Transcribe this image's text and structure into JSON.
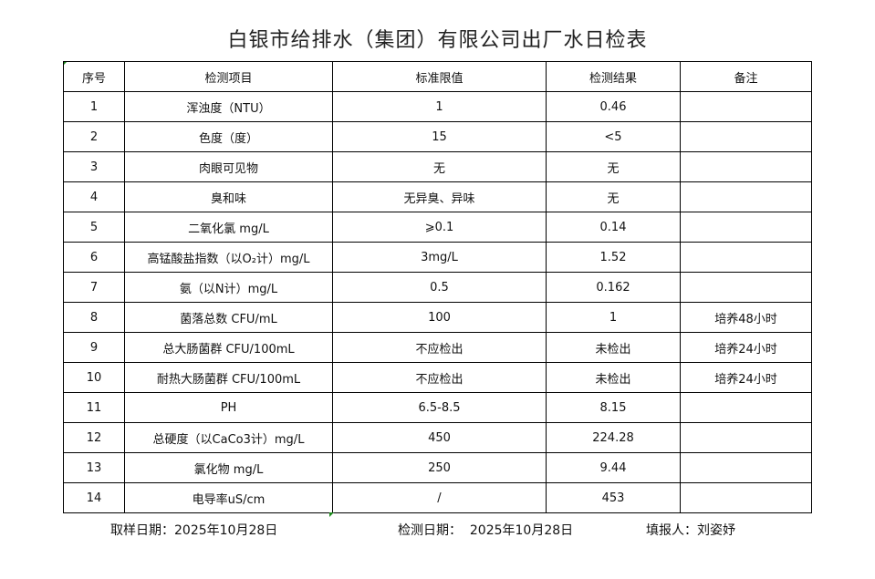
{
  "title": "白银市给排水（集团）有限公司出厂水日检表",
  "headers": [
    "序号",
    "检测项目",
    "标准限值",
    "检测结果",
    "备注"
  ],
  "rows": [
    [
      "1",
      "浑浊度（NTU）",
      "1",
      "0.46",
      ""
    ],
    [
      "2",
      "色度（度）",
      "15",
      "<5",
      ""
    ],
    [
      "3",
      "肉眼可见物",
      "无",
      "无",
      ""
    ],
    [
      "4",
      "臭和味",
      "无异臭、异味",
      "无",
      ""
    ],
    [
      "5",
      "二氧化氯 mg/L",
      "⩾0.1",
      "0.14",
      ""
    ],
    [
      "6",
      "高锰酸盐指数（以O₂计）mg/L",
      "3mg/L",
      "1.52",
      ""
    ],
    [
      "7",
      "氨（以N计）mg/L",
      "0.5",
      "0.162",
      ""
    ],
    [
      "8",
      "菌落总数 CFU/mL",
      "100",
      "1",
      "培养48小时"
    ],
    [
      "9",
      "总大肠菌群 CFU/100mL",
      "不应检出",
      "未检出",
      "培养24小时"
    ],
    [
      "10",
      "耐热大肠菌群 CFU/100mL",
      "不应检出",
      "未检出",
      "培养24小时"
    ],
    [
      "11",
      "PH",
      "6.5-8.5",
      "8.15",
      ""
    ],
    [
      "12",
      "总硬度（以CaCo3计）mg/L",
      "450",
      "224.28",
      ""
    ],
    [
      "13",
      "氯化物 mg/L",
      "250",
      "9.44",
      ""
    ],
    [
      "14",
      "电导率uS/cm",
      "/",
      "453",
      ""
    ]
  ],
  "footer": {
    "sample_date": "取样日期：2025年10月28日",
    "test_date": "检测日期：  2025年10月28日",
    "reporter": "填报人：刘姿妤"
  }
}
